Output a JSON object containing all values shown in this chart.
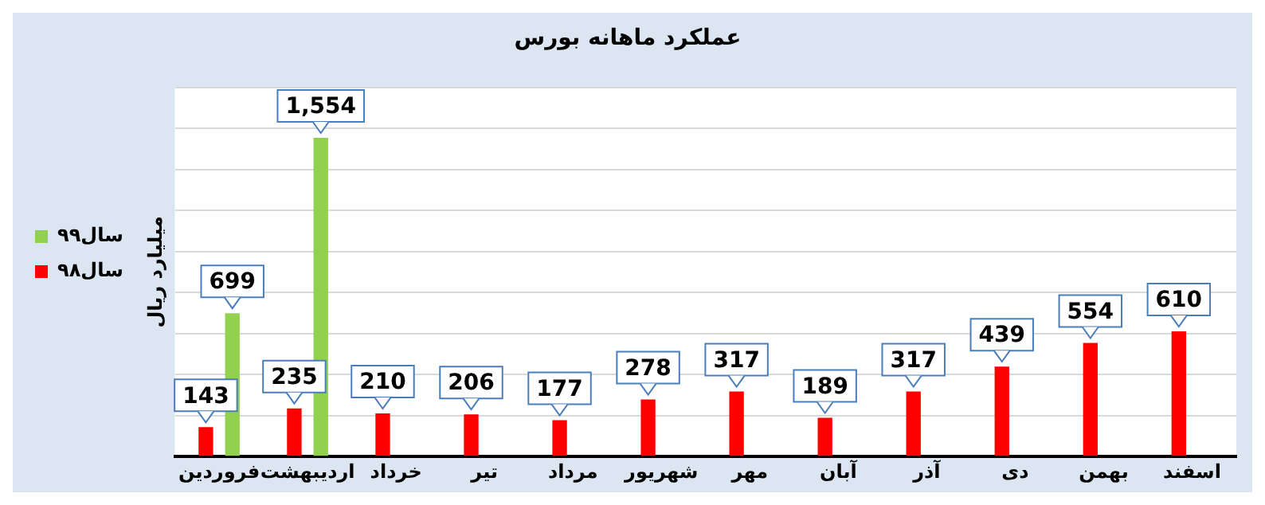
{
  "chart_data": {
    "type": "bar",
    "title": "عملکرد ماهانه بورس",
    "ylabel": "میلیارد ریال",
    "categories": [
      "فروردین",
      "اردیبهشت",
      "خرداد",
      "تیر",
      "مرداد",
      "شهریور",
      "مهر",
      "آبان",
      "آذر",
      "دی",
      "بهمن",
      "اسفند"
    ],
    "series": [
      {
        "name": "سال۹۸",
        "color": "#ff0000",
        "values": [
          143,
          235,
          210,
          206,
          177,
          278,
          317,
          189,
          317,
          439,
          554,
          610
        ],
        "value_labels": [
          "143",
          "235",
          "210",
          "206",
          "177",
          "278",
          "317",
          "189",
          "317",
          "439",
          "554",
          "610"
        ]
      },
      {
        "name": "سال۹۹",
        "color": "#92d050",
        "values": [
          699,
          1554,
          null,
          null,
          null,
          null,
          null,
          null,
          null,
          null,
          null,
          null
        ],
        "value_labels": [
          "699",
          "1,554",
          null,
          null,
          null,
          null,
          null,
          null,
          null,
          null,
          null,
          null
        ]
      }
    ],
    "ylim": [
      0,
      1800
    ],
    "yticks": [
      {
        "value": 0,
        "label": null
      },
      {
        "value": 200,
        "label": null
      },
      {
        "value": 400,
        "label": null
      },
      {
        "value": 600,
        "label": null
      },
      {
        "value": 800,
        "label": null
      },
      {
        "value": 1000,
        "label": null
      },
      {
        "value": 1200,
        "label": null
      },
      {
        "value": 1400,
        "label": null
      },
      {
        "value": 1600,
        "label": null
      },
      {
        "value": 1800,
        "label": null
      }
    ],
    "grid": "y",
    "legend": "left",
    "tick_labels": "x"
  }
}
